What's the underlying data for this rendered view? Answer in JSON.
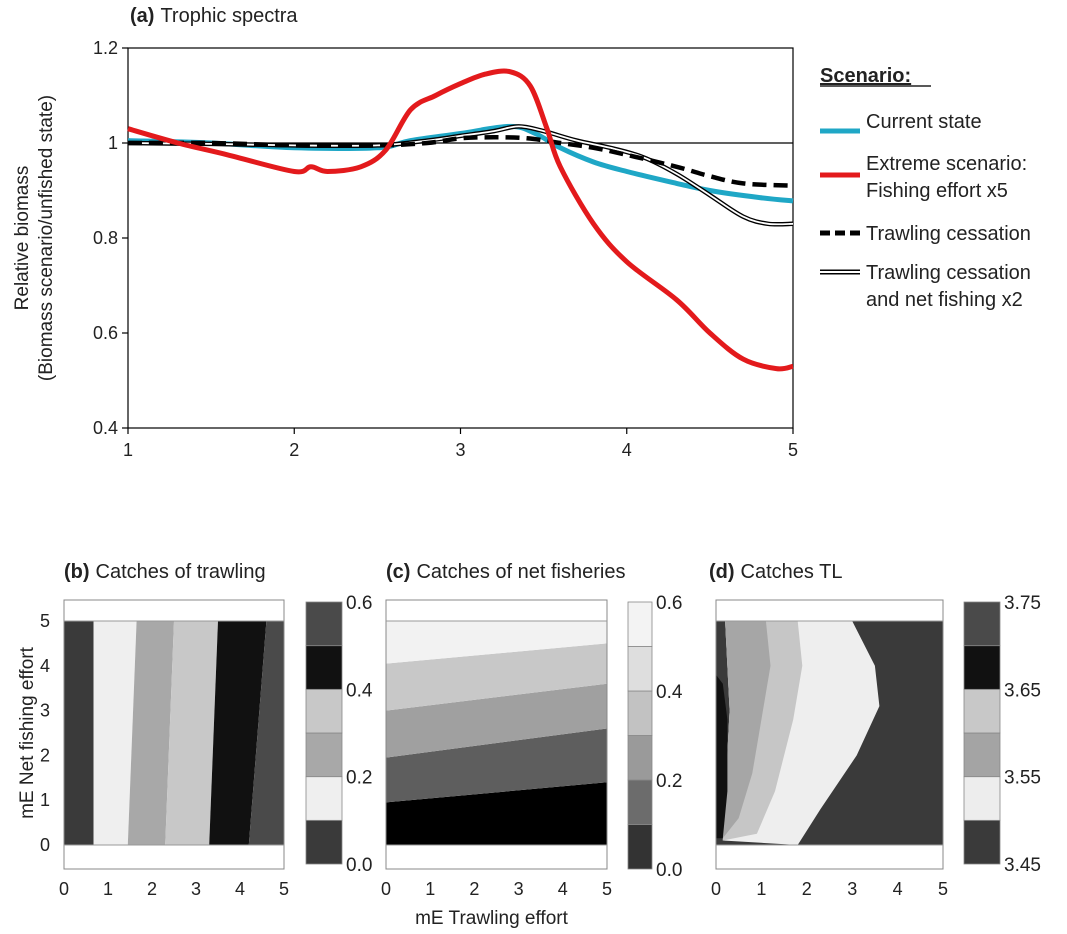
{
  "chart_data": [
    {
      "panel": "(a)",
      "title": "Trophic spectra",
      "type": "line",
      "xlabel": "",
      "ylabel": [
        "Relative biomass",
        "(Biomass scenario/unfished state)"
      ],
      "xlim": [
        1,
        5
      ],
      "ylim": [
        0.4,
        1.2
      ],
      "xticks": [
        "1",
        "2",
        "3",
        "4",
        "5"
      ],
      "yticks": [
        "0.4",
        "0.6",
        "0.8",
        "1",
        "1.2"
      ],
      "reference_line": 1,
      "legend": {
        "title": "Scenario:",
        "position": "right",
        "entries": [
          {
            "lines": [
              "Current state"
            ],
            "series": 0
          },
          {
            "lines": [
              "Extreme scenario:",
              "Fishing effort x5"
            ],
            "series": 1
          },
          {
            "lines": [
              "Trawling cessation"
            ],
            "series": 2
          },
          {
            "lines": [
              "Trawling cessation",
              "and net fishing x2"
            ],
            "series": 3
          }
        ]
      },
      "series": [
        {
          "name": "Current state",
          "color": "#1fa7c6",
          "style": "solid",
          "points": [
            [
              1,
              1.005
            ],
            [
              1.5,
              1.0
            ],
            [
              2,
              0.99
            ],
            [
              2.5,
              0.99
            ],
            [
              2.7,
              1.005
            ],
            [
              3,
              1.02
            ],
            [
              3.3,
              1.035
            ],
            [
              3.45,
              1.02
            ],
            [
              3.6,
              0.99
            ],
            [
              3.8,
              0.96
            ],
            [
              4,
              0.94
            ],
            [
              4.3,
              0.915
            ],
            [
              4.5,
              0.9
            ],
            [
              4.8,
              0.885
            ],
            [
              5,
              0.878
            ]
          ]
        },
        {
          "name": "Extreme scenario: Fishing effort x5",
          "color": "#e31a1c",
          "style": "solid",
          "points": [
            [
              1,
              1.03
            ],
            [
              1.3,
              1.0
            ],
            [
              1.6,
              0.975
            ],
            [
              2,
              0.94
            ],
            [
              2.1,
              0.95
            ],
            [
              2.2,
              0.94
            ],
            [
              2.4,
              0.95
            ],
            [
              2.55,
              0.985
            ],
            [
              2.7,
              1.07
            ],
            [
              2.85,
              1.1
            ],
            [
              3.0,
              1.125
            ],
            [
              3.15,
              1.145
            ],
            [
              3.3,
              1.15
            ],
            [
              3.42,
              1.12
            ],
            [
              3.52,
              1.03
            ],
            [
              3.6,
              0.95
            ],
            [
              3.8,
              0.83
            ],
            [
              4,
              0.75
            ],
            [
              4.3,
              0.67
            ],
            [
              4.5,
              0.6
            ],
            [
              4.7,
              0.545
            ],
            [
              4.9,
              0.525
            ],
            [
              5,
              0.53
            ]
          ]
        },
        {
          "name": "Trawling cessation",
          "color": "#000000",
          "style": "dashed",
          "points": [
            [
              1,
              1.0
            ],
            [
              1.5,
              1.0
            ],
            [
              2,
              0.995
            ],
            [
              2.5,
              0.995
            ],
            [
              2.8,
              1.0
            ],
            [
              3,
              1.01
            ],
            [
              3.2,
              1.012
            ],
            [
              3.4,
              1.01
            ],
            [
              3.6,
              1.0
            ],
            [
              3.8,
              0.99
            ],
            [
              4,
              0.975
            ],
            [
              4.3,
              0.95
            ],
            [
              4.5,
              0.93
            ],
            [
              4.7,
              0.915
            ],
            [
              5,
              0.91
            ]
          ]
        },
        {
          "name": "Trawling cessation and net fishing x2",
          "color": "#000000",
          "style": "double",
          "points": [
            [
              1,
              1.0
            ],
            [
              1.5,
              0.998
            ],
            [
              2,
              0.995
            ],
            [
              2.5,
              0.995
            ],
            [
              2.8,
              1.005
            ],
            [
              3,
              1.015
            ],
            [
              3.2,
              1.025
            ],
            [
              3.35,
              1.035
            ],
            [
              3.5,
              1.025
            ],
            [
              3.7,
              1.005
            ],
            [
              3.9,
              0.99
            ],
            [
              4.1,
              0.97
            ],
            [
              4.3,
              0.935
            ],
            [
              4.5,
              0.89
            ],
            [
              4.7,
              0.845
            ],
            [
              4.85,
              0.83
            ],
            [
              5,
              0.83
            ]
          ]
        }
      ]
    },
    {
      "panel": "(b)",
      "title": "Catches of trawling",
      "type": "heatmap",
      "xlabel": "",
      "ylabel": "mE Net fishing effort",
      "xlim": [
        0,
        5
      ],
      "ylim": [
        0,
        5
      ],
      "xticks": [
        "0",
        "1",
        "2",
        "3",
        "4",
        "5"
      ],
      "yticks": [
        "0",
        "1",
        "2",
        "3",
        "4",
        "5"
      ],
      "colorbar": {
        "ticks": [
          "0.0",
          "0.2",
          "0.4",
          "0.6"
        ],
        "range": [
          0,
          0.6
        ],
        "levels": [
          "#3a3a3a",
          "#efefef",
          "#a8a8a8",
          "#c8c8c8",
          "#111111",
          "#4a4a4a"
        ]
      },
      "regions": [
        {
          "level": 0,
          "poly": [
            [
              0,
              0
            ],
            [
              0.67,
              0
            ],
            [
              0.67,
              5
            ],
            [
              0,
              5
            ]
          ]
        },
        {
          "level": 1,
          "poly": [
            [
              0.67,
              0
            ],
            [
              1.45,
              0
            ],
            [
              1.65,
              5
            ],
            [
              0.67,
              5
            ]
          ]
        },
        {
          "level": 2,
          "poly": [
            [
              1.45,
              0
            ],
            [
              2.3,
              0
            ],
            [
              2.5,
              5
            ],
            [
              1.65,
              5
            ]
          ]
        },
        {
          "level": 3,
          "poly": [
            [
              2.3,
              0
            ],
            [
              3.3,
              0
            ],
            [
              3.5,
              5
            ],
            [
              2.5,
              5
            ]
          ]
        },
        {
          "level": 4,
          "poly": [
            [
              3.3,
              0
            ],
            [
              4.2,
              0
            ],
            [
              4.6,
              5
            ],
            [
              3.5,
              5
            ]
          ]
        },
        {
          "level": 5,
          "poly": [
            [
              4.2,
              0
            ],
            [
              5,
              0
            ],
            [
              5,
              5
            ],
            [
              4.6,
              5
            ]
          ]
        }
      ]
    },
    {
      "panel": "(c)",
      "title": "Catches of net fisheries",
      "type": "heatmap",
      "xlabel": "mE Trawling effort",
      "ylabel": "",
      "xlim": [
        0,
        5
      ],
      "ylim": [
        0,
        5
      ],
      "xticks": [
        "0",
        "1",
        "2",
        "3",
        "4",
        "5"
      ],
      "yticks": [
        "0",
        "1",
        "2",
        "3",
        "4",
        "5"
      ],
      "colorbar": {
        "ticks": [
          "0.0",
          "0.2",
          "0.4",
          "0.6"
        ],
        "range": [
          0,
          0.6
        ],
        "levels": [
          "#333333",
          "#6c6c6c",
          "#9a9a9a",
          "#c2c2c2",
          "#dedede",
          "#f3f3f3"
        ]
      },
      "regions": [
        {
          "level": 0,
          "poly": [
            [
              0,
              0
            ],
            [
              5,
              0
            ],
            [
              5,
              1.4
            ],
            [
              0,
              0.95
            ]
          ]
        },
        {
          "level": 1,
          "poly": [
            [
              0,
              0.95
            ],
            [
              5,
              1.4
            ],
            [
              5,
              2.6
            ],
            [
              0,
              1.95
            ]
          ]
        },
        {
          "level": 2,
          "poly": [
            [
              0,
              1.95
            ],
            [
              5,
              2.6
            ],
            [
              5,
              3.6
            ],
            [
              0,
              3.0
            ]
          ]
        },
        {
          "level": 3,
          "poly": [
            [
              0,
              3.0
            ],
            [
              5,
              3.6
            ],
            [
              5,
              4.5
            ],
            [
              0,
              4.05
            ]
          ]
        },
        {
          "level": 4,
          "poly": [
            [
              0,
              4.05
            ],
            [
              5,
              4.5
            ],
            [
              5,
              5
            ],
            [
              0,
              5
            ]
          ]
        }
      ],
      "region_colors": [
        "#000000",
        "#5e5e5e",
        "#a0a0a0",
        "#c8c8c8",
        "#f2f2f2"
      ]
    },
    {
      "panel": "(d)",
      "title": "Catches TL",
      "type": "heatmap",
      "xlabel": "",
      "ylabel": "",
      "xlim": [
        0,
        5
      ],
      "ylim": [
        0,
        5
      ],
      "xticks": [
        "0",
        "1",
        "2",
        "3",
        "4",
        "5"
      ],
      "yticks": [
        "0",
        "1",
        "2",
        "3",
        "4",
        "5"
      ],
      "colorbar": {
        "ticks": [
          "3.45",
          "3.55",
          "3.65",
          "3.75"
        ],
        "range": [
          3.45,
          3.75
        ],
        "levels": [
          "#3a3a3a",
          "#ededed",
          "#a4a4a4",
          "#c8c8c8",
          "#111111",
          "#4a4a4a"
        ]
      },
      "regions": [
        {
          "color": "#3a3a3a",
          "poly": [
            [
              0,
              0
            ],
            [
              5,
              0
            ],
            [
              5,
              5
            ],
            [
              0,
              5
            ]
          ]
        },
        {
          "color": "#eeeeee",
          "poly": [
            [
              0.15,
              0.1
            ],
            [
              1.8,
              0
            ],
            [
              2.3,
              0.8
            ],
            [
              3.1,
              2.0
            ],
            [
              3.6,
              3.1
            ],
            [
              3.5,
              4.0
            ],
            [
              3.0,
              5
            ],
            [
              0.2,
              5
            ],
            [
              0.3,
              3.0
            ]
          ]
        },
        {
          "color": "#c6c6c6",
          "poly": [
            [
              0.15,
              0.1
            ],
            [
              0.9,
              0.25
            ],
            [
              1.3,
              1.2
            ],
            [
              1.7,
              2.8
            ],
            [
              1.9,
              4.0
            ],
            [
              1.8,
              5
            ],
            [
              0.2,
              5
            ],
            [
              0.3,
              3.0
            ]
          ]
        },
        {
          "color": "#a6a6a6",
          "poly": [
            [
              0.15,
              0.15
            ],
            [
              0.5,
              0.6
            ],
            [
              0.8,
              1.6
            ],
            [
              1.0,
              2.8
            ],
            [
              1.2,
              4.0
            ],
            [
              1.1,
              5
            ],
            [
              0.2,
              5
            ],
            [
              0.3,
              3.0
            ]
          ]
        },
        {
          "color": "#111111",
          "poly": [
            [
              0,
              0.15
            ],
            [
              0.15,
              0.15
            ],
            [
              0.25,
              1.2
            ],
            [
              0.25,
              2.8
            ],
            [
              0.15,
              3.6
            ],
            [
              0,
              3.8
            ]
          ]
        }
      ]
    }
  ]
}
